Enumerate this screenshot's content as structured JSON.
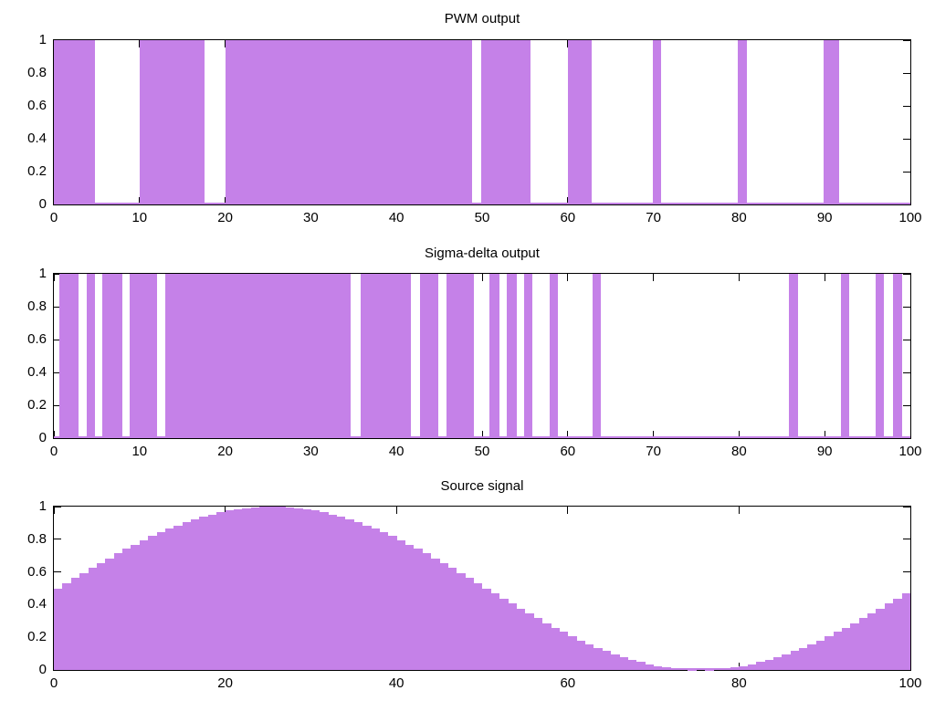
{
  "figure": {
    "background": "#ffffff",
    "plot_count": 3
  },
  "colors": {
    "signal_fill": "#c581e8",
    "axis": "#000000",
    "text": "#000000"
  },
  "chart_data": [
    {
      "type": "area",
      "title": "PWM output",
      "xlabel": "",
      "ylabel": "",
      "xlim": [
        0,
        100
      ],
      "ylim": [
        0,
        1
      ],
      "grid": false,
      "legend": "none",
      "x_tick_labels": [
        "0",
        "10",
        "20",
        "30",
        "40",
        "50",
        "60",
        "70",
        "80",
        "90",
        "100"
      ],
      "y_tick_labels": [
        "0",
        "0.2",
        "0.4",
        "0.6",
        "0.8",
        "1"
      ],
      "signal_kind": "binary",
      "on_intervals": [
        [
          0,
          4.8
        ],
        [
          10,
          17.6
        ],
        [
          20,
          48.8
        ],
        [
          49.9,
          55.7
        ],
        [
          60,
          62.8
        ],
        [
          69.9,
          70.9
        ],
        [
          79.9,
          80.9
        ],
        [
          89.9,
          91.7
        ]
      ]
    },
    {
      "type": "area",
      "title": "Sigma-delta output",
      "xlabel": "",
      "ylabel": "",
      "xlim": [
        0,
        100
      ],
      "ylim": [
        0,
        1
      ],
      "grid": false,
      "legend": "none",
      "x_tick_labels": [
        "0",
        "10",
        "20",
        "30",
        "40",
        "50",
        "60",
        "70",
        "80",
        "90",
        "100"
      ],
      "y_tick_labels": [
        "0",
        "0.2",
        "0.4",
        "0.6",
        "0.8",
        "1"
      ],
      "signal_kind": "binary",
      "on_intervals": [
        [
          0.6,
          2.9
        ],
        [
          3.8,
          4.8
        ],
        [
          5.7,
          8.0
        ],
        [
          8.9,
          12.1
        ],
        [
          13.0,
          34.7
        ],
        [
          35.8,
          41.7
        ],
        [
          42.8,
          44.9
        ],
        [
          45.8,
          49.0
        ],
        [
          50.9,
          52.0
        ],
        [
          52.9,
          54.1
        ],
        [
          54.9,
          55.9
        ],
        [
          57.9,
          58.9
        ],
        [
          62.9,
          63.9
        ],
        [
          85.8,
          86.9
        ],
        [
          91.9,
          92.9
        ],
        [
          95.9,
          96.9
        ],
        [
          98.0,
          99.0
        ]
      ]
    },
    {
      "type": "area",
      "title": "Source signal",
      "xlabel": "",
      "ylabel": "",
      "xlim": [
        0,
        100
      ],
      "ylim": [
        0,
        1
      ],
      "grid": false,
      "legend": "none",
      "x_tick_labels": [
        "0",
        "20",
        "40",
        "60",
        "80",
        "100"
      ],
      "y_tick_labels": [
        "0",
        "0.2",
        "0.4",
        "0.6",
        "0.8",
        "1"
      ],
      "signal_kind": "sampled_staircase",
      "x_step": 1,
      "values": [
        0.5,
        0.5314,
        0.5627,
        0.5937,
        0.6243,
        0.6545,
        0.6841,
        0.7129,
        0.7409,
        0.7679,
        0.7939,
        0.8187,
        0.8423,
        0.8645,
        0.8853,
        0.9045,
        0.9222,
        0.9382,
        0.9524,
        0.9649,
        0.9755,
        0.9843,
        0.9911,
        0.996,
        0.999,
        1,
        0.999,
        0.996,
        0.9911,
        0.9843,
        0.9755,
        0.9649,
        0.9524,
        0.9382,
        0.9222,
        0.9045,
        0.8853,
        0.8645,
        0.8423,
        0.8187,
        0.7939,
        0.7679,
        0.7409,
        0.7129,
        0.6841,
        0.6545,
        0.6243,
        0.5937,
        0.5627,
        0.5314,
        0.5,
        0.4686,
        0.4373,
        0.4063,
        0.3757,
        0.3455,
        0.3159,
        0.2871,
        0.2591,
        0.2321,
        0.2061,
        0.1813,
        0.1577,
        0.1355,
        0.1147,
        0.0955,
        0.0778,
        0.0618,
        0.0476,
        0.0351,
        0.0245,
        0.0157,
        0.0089,
        0.004,
        0.001,
        0,
        0.001,
        0.004,
        0.0089,
        0.0157,
        0.0245,
        0.0351,
        0.0476,
        0.0618,
        0.0778,
        0.0955,
        0.1147,
        0.1355,
        0.1577,
        0.1813,
        0.2061,
        0.2321,
        0.2591,
        0.2871,
        0.3159,
        0.3455,
        0.3757,
        0.4063,
        0.4373,
        0.4686
      ]
    }
  ]
}
